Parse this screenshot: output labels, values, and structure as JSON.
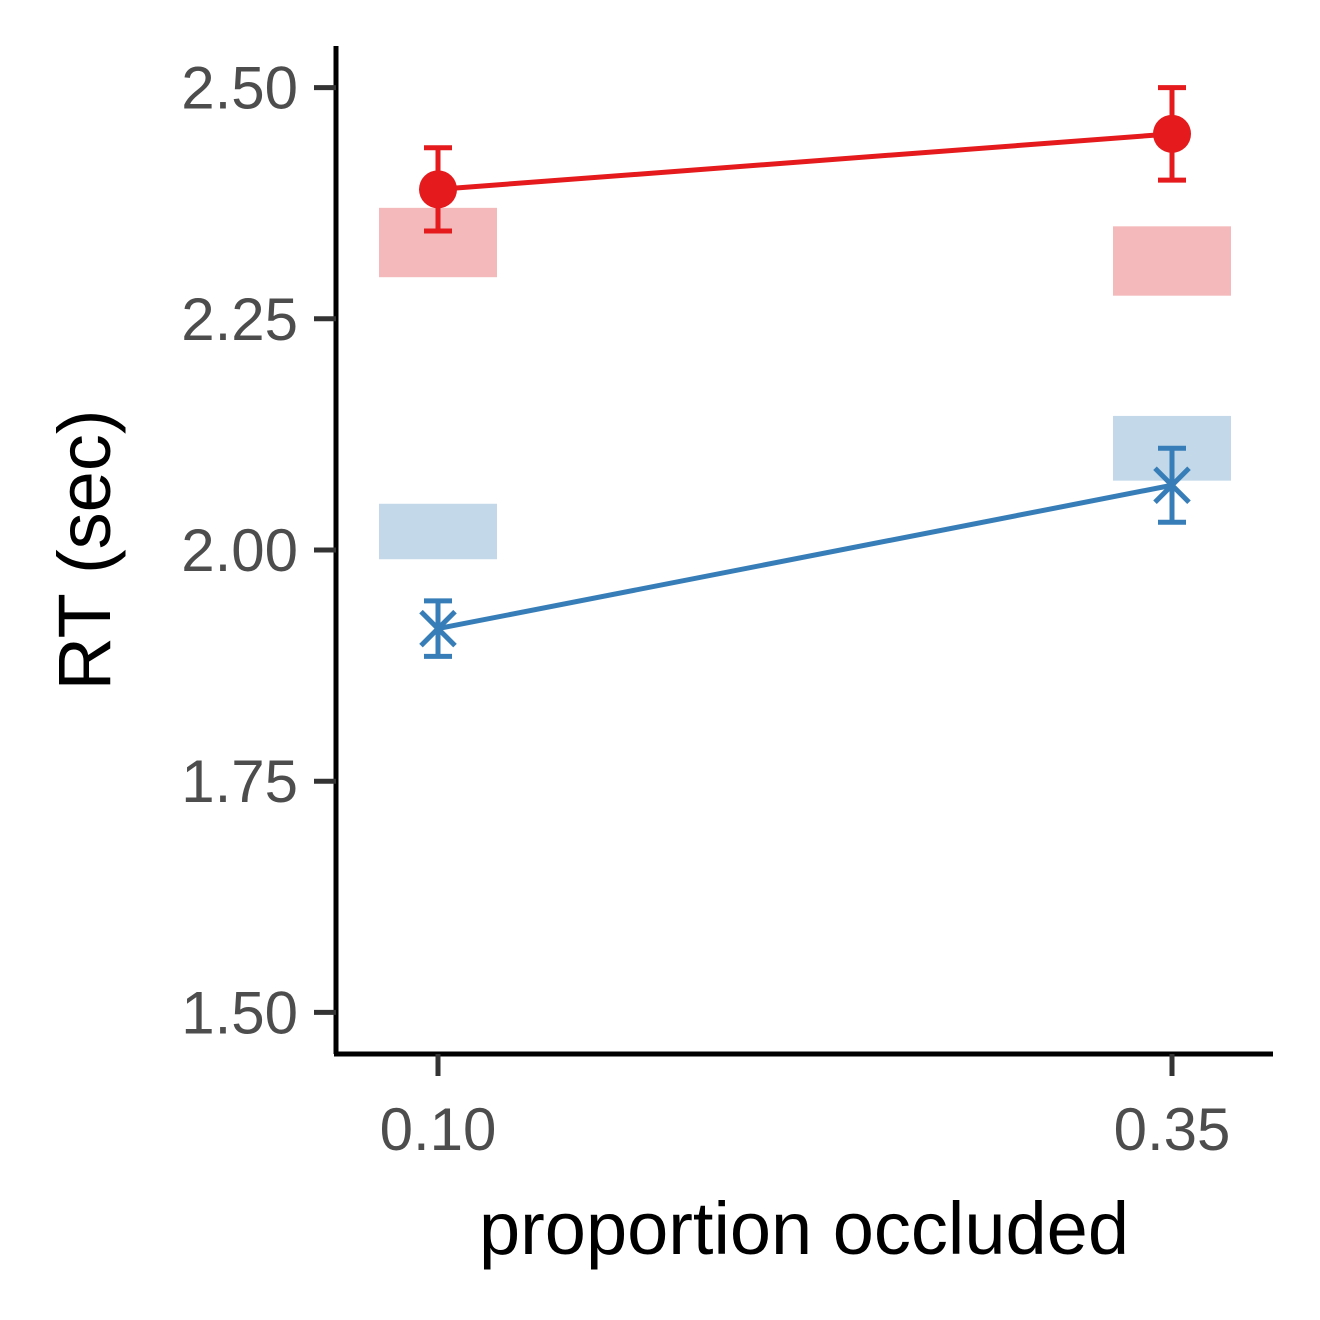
{
  "chart_data": {
    "type": "line",
    "xlabel": "proportion occluded",
    "ylabel": "RT (sec)",
    "ylim": [
      1.455,
      2.545
    ],
    "x": [
      0.1,
      0.35
    ],
    "x_tick_labels": [
      "0.10",
      "0.35"
    ],
    "y_ticks": [
      1.5,
      1.75,
      2.0,
      2.25,
      2.5
    ],
    "y_tick_labels": [
      "1.50",
      "1.75",
      "2.00",
      "2.25",
      "2.50"
    ],
    "grid": false,
    "legend": "none",
    "series": [
      {
        "color": "#e41a1c",
        "marker": "circle",
        "values": [
          2.39,
          2.45
        ],
        "error": [
          0.045,
          0.05
        ],
        "bands": [
          [
            2.295,
            2.37
          ],
          [
            2.275,
            2.35
          ]
        ],
        "band_color": "#f4b9ba"
      },
      {
        "color": "#377eb8",
        "marker": "asterisk",
        "values": [
          1.915,
          2.07
        ],
        "error": [
          0.03,
          0.04
        ],
        "bands": [
          [
            1.99,
            2.05
          ],
          [
            2.075,
            2.145
          ]
        ],
        "band_color": "#c3d8e9"
      }
    ]
  }
}
